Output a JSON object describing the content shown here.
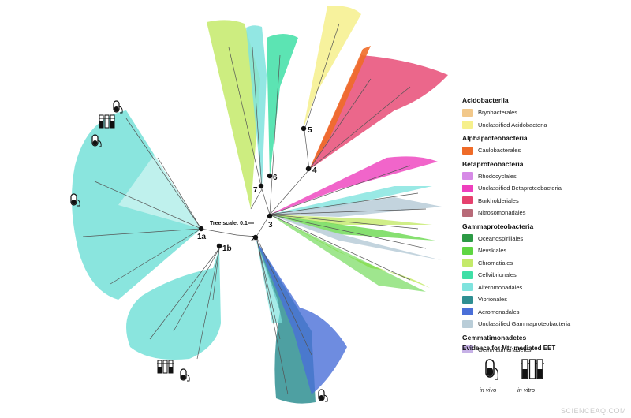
{
  "tree": {
    "scale_label": "Tree scale: 0.1",
    "nodes": [
      "1a",
      "1b",
      "2",
      "3",
      "4",
      "5",
      "6",
      "7"
    ]
  },
  "legend": {
    "groups": [
      {
        "title": "Acidobacteriia",
        "items": [
          {
            "label": "Bryobacterales",
            "color": "#f2c88a"
          },
          {
            "label": "Unclassified Acidobacteria",
            "color": "#f6f08c"
          }
        ]
      },
      {
        "title": "Alphaproteobacteria",
        "items": [
          {
            "label": "Caulobacterales",
            "color": "#ef6b28"
          }
        ]
      },
      {
        "title": "Betaproteobacteria",
        "items": [
          {
            "label": "Rhodocyclales",
            "color": "#d68ae6"
          },
          {
            "label": "Unclassified Betaproteobacteria",
            "color": "#ee3fbd"
          },
          {
            "label": "Burkholderiales",
            "color": "#e6416e"
          },
          {
            "label": "Nitrosomonadales",
            "color": "#b86a78"
          }
        ]
      },
      {
        "title": "Gammaproteobacteria",
        "items": [
          {
            "label": "Oceanospirillales",
            "color": "#2c9a45"
          },
          {
            "label": "Nevskiales",
            "color": "#5fd642"
          },
          {
            "label": "Chromatiales",
            "color": "#c4ea6a"
          },
          {
            "label": "Cellvibrionales",
            "color": "#3fdfa6"
          },
          {
            "label": "Alteromonadales",
            "color": "#7fe3de"
          },
          {
            "label": "Vibrionales",
            "color": "#2f8f92"
          },
          {
            "label": "Aeromonadales",
            "color": "#4a6fd8"
          },
          {
            "label": "Unclassified Gammaproteobacteria",
            "color": "#b9cdd8"
          }
        ]
      },
      {
        "title": "Gemmatimonadetes",
        "items": [
          {
            "label": "Gemmatimonadetes",
            "color": "#c6b1e6"
          }
        ]
      }
    ]
  },
  "evidence": {
    "title": "Evidence for Mtr-mediated EET",
    "in_vivo": "in vivo",
    "in_vitro": "in vitro"
  },
  "watermark": "SCIENCEAQ.COM"
}
